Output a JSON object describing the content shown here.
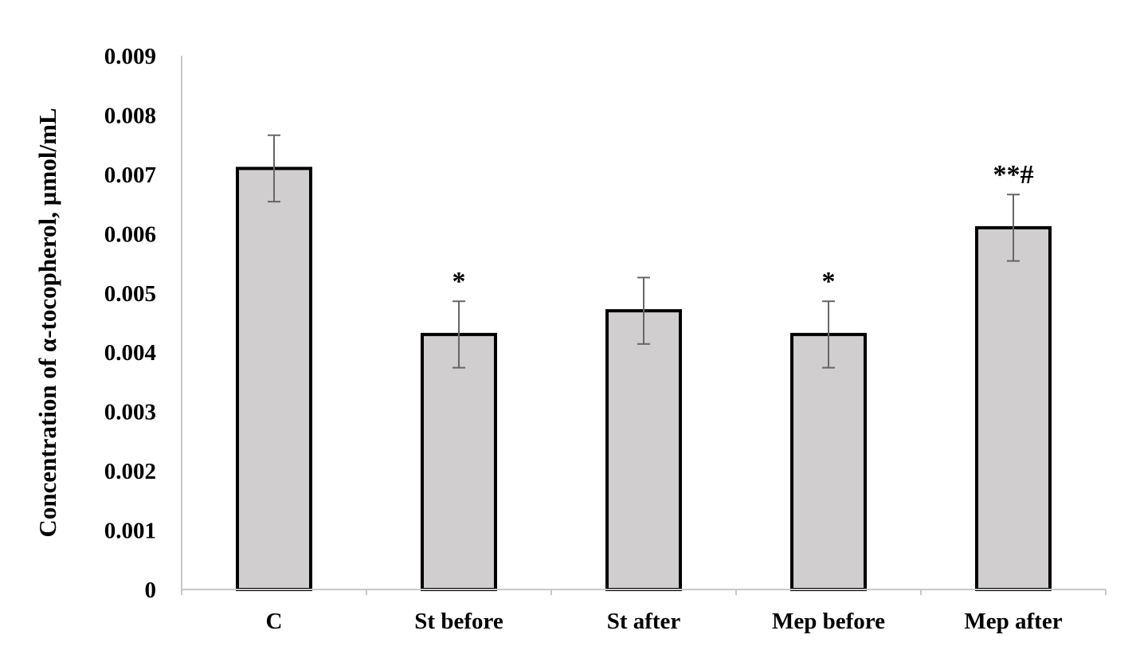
{
  "chart_data": {
    "type": "bar",
    "title": "",
    "xlabel": "",
    "ylabel": "Concentration of α-tocopherol, µmol/mL",
    "ylim": [
      0,
      0.009
    ],
    "yticks": [
      "0",
      "0.001",
      "0.002",
      "0.003",
      "0.004",
      "0.005",
      "0.006",
      "0.007",
      "0.008",
      "0.009"
    ],
    "ytick_values": [
      0,
      0.001,
      0.002,
      0.003,
      0.004,
      0.005,
      0.006,
      0.007,
      0.008,
      0.009
    ],
    "categories": [
      "C",
      "St before",
      "St after",
      "Mep before",
      "Mep after"
    ],
    "values": [
      0.0071,
      0.0043,
      0.0047,
      0.0043,
      0.0061
    ],
    "errors": [
      0.00056,
      0.00056,
      0.00056,
      0.00056,
      0.00056
    ],
    "annotations": [
      "",
      "*",
      "",
      "*",
      "**#"
    ],
    "grid": false,
    "colors": {
      "bar_fill": "#d0cecf",
      "bar_stroke": "#000000",
      "error": "#666666",
      "axis": "#c8c8c8"
    }
  }
}
